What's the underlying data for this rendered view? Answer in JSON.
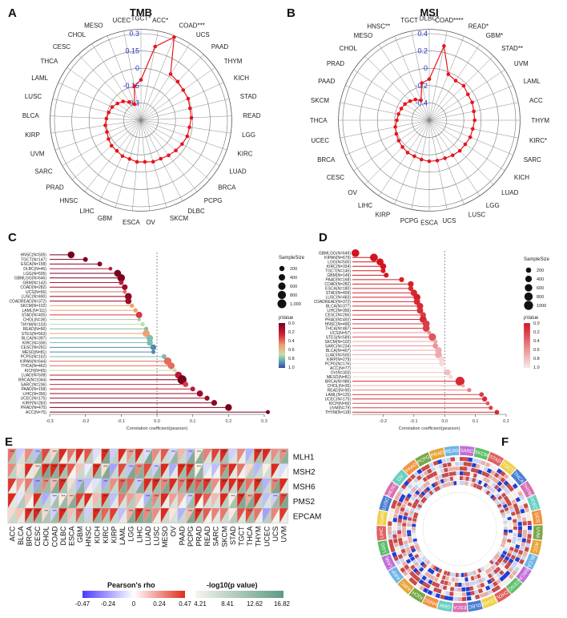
{
  "panels": {
    "a": {
      "letter": "A"
    },
    "b": {
      "letter": "B"
    },
    "c": {
      "letter": "C"
    },
    "d": {
      "letter": "D"
    },
    "e": {
      "letter": "E"
    },
    "f": {
      "letter": "F"
    }
  },
  "chart_data": [
    {
      "id": "radar-tmb",
      "type": "radar",
      "title": "TMB",
      "rlim": [
        -0.3,
        0.3
      ],
      "rticks": [
        "0.3",
        "0.15",
        "0",
        "-0.15",
        "-0.3"
      ],
      "categories": [
        "TGCT*",
        "ACC*",
        "COAD***",
        "UCS",
        "PAAD",
        "THYM",
        "KICH",
        "STAD",
        "READ",
        "LGG",
        "KIRC",
        "LUAD",
        "BRCA",
        "PCPG",
        "DLBC",
        "SKCM",
        "OV",
        "ESCA",
        "GBM",
        "LIHC",
        "HNSC",
        "PRAD",
        "SARC",
        "UVM",
        "KIRP",
        "BLCA",
        "LUSC",
        "LAML",
        "THCA",
        "CESC",
        "CHOL",
        "MESO",
        "UCEC"
      ],
      "values": [
        -0.02,
        0.22,
        0.32,
        0.08,
        0.07,
        0.06,
        0.06,
        0.05,
        0.05,
        0.04,
        0.04,
        0.03,
        0.02,
        0.01,
        0.0,
        0.0,
        -0.01,
        -0.01,
        -0.02,
        -0.02,
        -0.03,
        -0.03,
        -0.04,
        -0.05,
        -0.05,
        -0.06,
        -0.07,
        -0.08,
        -0.1,
        -0.12,
        -0.15,
        -0.18,
        -0.06
      ]
    },
    {
      "id": "radar-msi",
      "type": "radar",
      "title": "MSI",
      "rlim": [
        -0.4,
        0.4
      ],
      "rticks": [
        "0.4",
        "0.2",
        "0",
        "-0.2",
        "-0.4"
      ],
      "categories": [
        "DLBC*",
        "COAD****",
        "READ*",
        "GBM*",
        "STAD**",
        "UVM",
        "LAML",
        "ACC",
        "THYM",
        "KIRC*",
        "SARC",
        "KICH",
        "LUAD",
        "LGG",
        "LUSC",
        "UCS",
        "ESCA",
        "PCPG",
        "KIRP",
        "LIHC",
        "OV",
        "CESC",
        "BRCA",
        "UCEC",
        "THCA",
        "SKCM",
        "PAAD",
        "PRAD",
        "CHOL",
        "MESO",
        "HNSC**",
        "TGCT"
      ],
      "values": [
        -0.02,
        0.3,
        0.06,
        0.04,
        0.05,
        0.03,
        0.03,
        0.02,
        0.02,
        0.01,
        0.01,
        0.0,
        0.0,
        -0.01,
        -0.02,
        -0.02,
        -0.02,
        -0.03,
        -0.04,
        -0.04,
        -0.05,
        -0.06,
        -0.07,
        -0.08,
        -0.1,
        -0.11,
        -0.12,
        -0.13,
        -0.15,
        -0.17,
        -0.2,
        -0.05
      ]
    },
    {
      "id": "lollipop-tmb",
      "type": "lollipop",
      "xlabel": "Correlation coefficient(pearson)",
      "xlim": [
        -0.3,
        0.3
      ],
      "xticks": [
        "-0.3",
        "-0.2",
        "-0.1",
        "0.0",
        "0.1",
        "0.2",
        "0.3"
      ],
      "size_legend_title": "SampleSize",
      "size_legend": [
        "200",
        "400",
        "600",
        "800",
        "1,000"
      ],
      "color_legend_title": "pValue",
      "color_legend": [
        "0.0",
        "0.2",
        "0.4",
        "0.6",
        "0.8",
        "1.0"
      ],
      "labels": [
        "HNSC(N=505)",
        "TGCT(N=147)",
        "ESCA(N=158)",
        "DLBC(N=46)",
        "LGG(N=505)",
        "GBMLGG(N=646)",
        "GBM(N=143)",
        "COAD(N=282)",
        "UCS(N=56)",
        "LUSC(N=490)",
        "COADREAD(N=372)",
        "SKCM(N=102)",
        "LAML(N=111)",
        "STAD(N=405)",
        "CHOL(N=36)",
        "THYM(N=103)",
        "READ(N=90)",
        "STES(N=563)",
        "BLCA(N=397)",
        "KIRC(N=336)",
        "CESC(N=291)",
        "MESO(N=81)",
        "PCPG(N=162)",
        "KIPAN(N=644)",
        "THCA(N=462)",
        "KICH(N=65)",
        "LUAD(N=508)",
        "BRCA(N=1044)",
        "SARC(N=236)",
        "PAAD(N=158)",
        "LIHC(N=356)",
        "UCEC(N=175)",
        "KIRP(N=283)",
        "PRAD(N=470)",
        "ACC(N=75)"
      ],
      "values": [
        -0.24,
        -0.2,
        -0.16,
        -0.13,
        -0.11,
        -0.1,
        -0.1,
        -0.09,
        -0.09,
        -0.08,
        -0.08,
        -0.07,
        -0.06,
        -0.05,
        -0.05,
        -0.04,
        -0.03,
        -0.03,
        -0.02,
        -0.02,
        -0.01,
        -0.01,
        0.02,
        0.03,
        0.04,
        0.05,
        0.06,
        0.07,
        0.08,
        0.1,
        0.12,
        0.14,
        0.16,
        0.2,
        0.31
      ],
      "sizes": [
        500,
        150,
        150,
        50,
        500,
        640,
        140,
        280,
        60,
        490,
        370,
        100,
        110,
        400,
        40,
        100,
        90,
        560,
        400,
        330,
        290,
        80,
        160,
        640,
        460,
        65,
        510,
        1040,
        240,
        160,
        360,
        175,
        280,
        470,
        75
      ],
      "pvalues": [
        0.0,
        0.02,
        0.05,
        0.2,
        0.01,
        0.01,
        0.2,
        0.1,
        0.4,
        0.05,
        0.1,
        0.5,
        0.5,
        0.3,
        0.75,
        0.7,
        0.8,
        0.5,
        0.8,
        0.8,
        0.9,
        0.9,
        0.8,
        0.4,
        0.4,
        0.7,
        0.2,
        0.0,
        0.3,
        0.2,
        0.1,
        0.1,
        0.05,
        0.0,
        0.0
      ]
    },
    {
      "id": "lollipop-msi",
      "type": "lollipop",
      "xlabel": "Correlation coefficient(pearson)",
      "xlim": [
        -0.3,
        0.2
      ],
      "xticks": [
        "-0.2",
        "-0.1",
        "0.0",
        "0.1",
        "0.2"
      ],
      "size_legend_title": "SampleSize",
      "size_legend": [
        "200",
        "400",
        "600",
        "800",
        "1000"
      ],
      "color_legend_title": "pValue",
      "color_legend": [
        "0.0",
        "0.2",
        "0.4",
        "0.6",
        "0.8",
        "1.0"
      ],
      "labels": [
        "GBMLGG(N=649)",
        "KIPAN(N=679)",
        "LGG(N=500)",
        "KIRC(N=334)",
        "TGCT(N=145)",
        "GBM(N=149)",
        "PAAD(N=168)",
        "COAD(N=282)",
        "ESCA(N=180)",
        "STAD(N=409)",
        "LUSC(N=483)",
        "COADREAD(N=372)",
        "BLCA(N=377)",
        "LIHC(N=356)",
        "CESC(N=266)",
        "PRAD(N=492)",
        "HNSC(N=496)",
        "THCA(N=487)",
        "UCS(N=57)",
        "STES(N=589)",
        "SKCM(N=102)",
        "SARC(N=234)",
        "BLCA(N=407)",
        "LUAD(N=500)",
        "KIRP(N=279)",
        "PCPG(N=176)",
        "ACC(N=77)",
        "OV(N=303)",
        "MESO(N=81)",
        "BRCA(N=986)",
        "CHOL(N=35)",
        "READ(N=90)",
        "LAML(N=125)",
        "UCEC(N=175)",
        "KICH(N=66)",
        "UVM(N=79)",
        "THYM(N=118)"
      ],
      "values": [
        -0.29,
        -0.23,
        -0.21,
        -0.2,
        -0.2,
        -0.19,
        -0.14,
        -0.11,
        -0.11,
        -0.1,
        -0.09,
        -0.09,
        -0.08,
        -0.08,
        -0.07,
        -0.07,
        -0.06,
        -0.06,
        -0.05,
        -0.04,
        -0.03,
        -0.03,
        -0.02,
        -0.02,
        -0.01,
        -0.01,
        0.0,
        0.01,
        0.02,
        0.05,
        0.06,
        0.08,
        0.12,
        0.13,
        0.14,
        0.15,
        0.17
      ],
      "sizes": [
        650,
        680,
        500,
        330,
        145,
        150,
        170,
        280,
        180,
        410,
        480,
        370,
        380,
        360,
        270,
        490,
        500,
        490,
        60,
        590,
        100,
        230,
        410,
        500,
        280,
        175,
        80,
        300,
        80,
        990,
        35,
        90,
        125,
        175,
        66,
        80,
        120
      ],
      "pvalues": [
        0.0,
        0.0,
        0.0,
        0.0,
        0.02,
        0.01,
        0.05,
        0.06,
        0.1,
        0.1,
        0.05,
        0.1,
        0.1,
        0.12,
        0.2,
        0.1,
        0.2,
        0.2,
        0.6,
        0.3,
        0.7,
        0.6,
        0.7,
        0.7,
        0.9,
        0.9,
        1.0,
        0.8,
        0.9,
        0.1,
        0.7,
        0.5,
        0.2,
        0.1,
        0.3,
        0.2,
        0.1
      ]
    },
    {
      "id": "heatmap-mmr",
      "type": "heatmap",
      "rows": [
        "MLH1",
        "MSH2",
        "MSH6",
        "PMS2",
        "EPCAM"
      ],
      "columns": [
        "ACC",
        "BLCA",
        "BRCA",
        "CESC",
        "CHOL",
        "COAD",
        "DLBC",
        "ESCA",
        "GBM",
        "HNSC",
        "KICH",
        "KIRC",
        "KIRP",
        "LAML",
        "LGG",
        "LIHC",
        "LUAD",
        "LUSC",
        "MESO",
        "OV",
        "PAAD",
        "PCPG",
        "PRAD",
        "READ",
        "SARC",
        "SKCM",
        "STAD",
        "TGCT",
        "THCA",
        "THYM",
        "UCEC",
        "UCS",
        "UVM"
      ],
      "rho_legend_title": "Pearson's rho",
      "rho_ticks": [
        "-0.47",
        "-0.24",
        "0",
        "0.24",
        "0.47"
      ],
      "p_legend_title": "-log10(p value)",
      "p_ticks": [
        "4.21",
        "8.41",
        "12.62",
        "16.82"
      ],
      "star_label": "***"
    },
    {
      "id": "circos-mmr",
      "type": "circular-heatmap",
      "ring_labels": [
        "PRAD",
        "READ",
        "SARC",
        "SKCM",
        "STAD",
        "TGCT",
        "THCA",
        "THYM",
        "UCEC",
        "UCS",
        "UVM",
        "ACC",
        "BLCA",
        "BRCA",
        "CESC",
        "CHOL",
        "COAD",
        "DLBC",
        "ESCA",
        "GBM",
        "HNSC",
        "KICH",
        "KIRC",
        "KIRP",
        "LAML",
        "LGG",
        "LIHC",
        "LUAD",
        "LUSC",
        "MESO",
        "OV",
        "PAAD",
        "PCPG"
      ]
    }
  ]
}
